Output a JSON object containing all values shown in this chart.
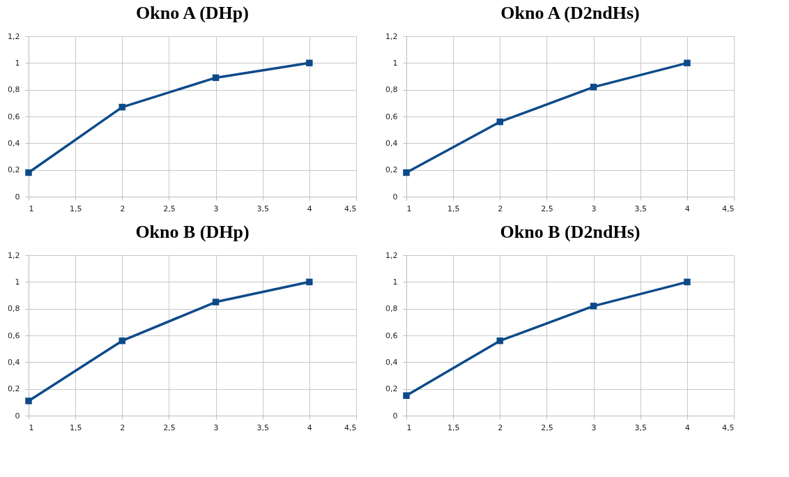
{
  "chart_data": [
    {
      "type": "line",
      "title": "Okno A (DHp)",
      "x": [
        1,
        2,
        3,
        4
      ],
      "series": [
        {
          "color": "#0d4a8a",
          "values": [
            0.18,
            0.67,
            0.89,
            1.0
          ]
        }
      ],
      "xlim": [
        1,
        4.5
      ],
      "xticks": [
        1,
        {
          "value": 1.5,
          "label": "1,5"
        },
        2,
        {
          "value": 2.5,
          "label": "2,5"
        },
        3,
        {
          "value": 3.5,
          "label": "3,5"
        },
        4,
        {
          "value": 4.5,
          "label": "4,5"
        }
      ],
      "ylim": [
        0,
        1.2
      ],
      "yticks": [
        0,
        {
          "value": 0.2,
          "label": "0,2"
        },
        {
          "value": 0.4,
          "label": "0,4"
        },
        {
          "value": 0.6,
          "label": "0,6"
        },
        {
          "value": 0.8,
          "label": "0,8"
        },
        1,
        {
          "value": 1.2,
          "label": "1,2"
        }
      ],
      "grid": true,
      "marker": "square",
      "line_style": "solid"
    },
    {
      "type": "line",
      "title": "Okno A (D2ndHs)",
      "x": [
        1,
        2,
        3,
        4
      ],
      "series": [
        {
          "color": "#0d4a8a",
          "values": [
            0.18,
            0.56,
            0.82,
            1.0
          ]
        }
      ],
      "xlim": [
        1,
        4.5
      ],
      "xticks": [
        1,
        {
          "value": 1.5,
          "label": "1,5"
        },
        2,
        {
          "value": 2.5,
          "label": "2,5"
        },
        3,
        {
          "value": 3.5,
          "label": "3,5"
        },
        4,
        {
          "value": 4.5,
          "label": "4,5"
        }
      ],
      "ylim": [
        0,
        1.2
      ],
      "yticks": [
        0,
        {
          "value": 0.2,
          "label": "0,2"
        },
        {
          "value": 0.4,
          "label": "0,4"
        },
        {
          "value": 0.6,
          "label": "0,6"
        },
        {
          "value": 0.8,
          "label": "0,8"
        },
        1,
        {
          "value": 1.2,
          "label": "1,2"
        }
      ],
      "grid": true,
      "marker": "square",
      "line_style": "solid"
    },
    {
      "type": "line",
      "title": "Okno B (DHp)",
      "x": [
        1,
        2,
        3,
        4
      ],
      "series": [
        {
          "color": "#0d4a8a",
          "values": [
            0.11,
            0.56,
            0.85,
            1.0
          ]
        }
      ],
      "xlim": [
        1,
        4.5
      ],
      "xticks": [
        1,
        {
          "value": 1.5,
          "label": "1,5"
        },
        2,
        {
          "value": 2.5,
          "label": "2,5"
        },
        3,
        {
          "value": 3.5,
          "label": "3,5"
        },
        4,
        {
          "value": 4.5,
          "label": "4,5"
        }
      ],
      "ylim": [
        0,
        1.2
      ],
      "yticks": [
        0,
        {
          "value": 0.2,
          "label": "0,2"
        },
        {
          "value": 0.4,
          "label": "0,4"
        },
        {
          "value": 0.6,
          "label": "0,6"
        },
        {
          "value": 0.8,
          "label": "0,8"
        },
        1,
        {
          "value": 1.2,
          "label": "1,2"
        }
      ],
      "grid": true,
      "marker": "square",
      "line_style": "solid"
    },
    {
      "type": "line",
      "title": "Okno B (D2ndHs)",
      "x": [
        1,
        2,
        3,
        4
      ],
      "series": [
        {
          "color": "#0d4a8a",
          "values": [
            0.15,
            0.56,
            0.82,
            1.0
          ]
        }
      ],
      "xlim": [
        1,
        4.5
      ],
      "xticks": [
        1,
        {
          "value": 1.5,
          "label": "1,5"
        },
        2,
        {
          "value": 2.5,
          "label": "2,5"
        },
        3,
        {
          "value": 3.5,
          "label": "3,5"
        },
        4,
        {
          "value": 4.5,
          "label": "4,5"
        }
      ],
      "ylim": [
        0,
        1.2
      ],
      "yticks": [
        0,
        {
          "value": 0.2,
          "label": "0,2"
        },
        {
          "value": 0.4,
          "label": "0,4"
        },
        {
          "value": 0.6,
          "label": "0,6"
        },
        {
          "value": 0.8,
          "label": "0,8"
        },
        1,
        {
          "value": 1.2,
          "label": "1,2"
        }
      ],
      "grid": true,
      "marker": "square",
      "line_style": "solid"
    }
  ]
}
